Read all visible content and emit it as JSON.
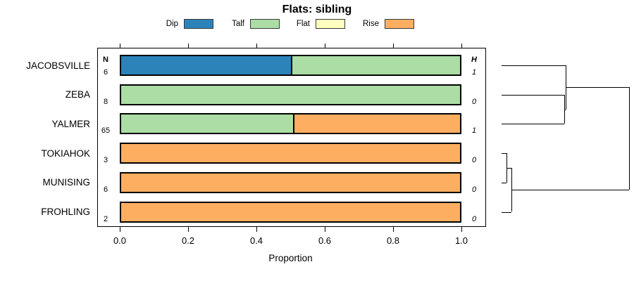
{
  "chart_data": {
    "type": "bar",
    "subtype": "horizontal_stacked_proportion",
    "title": "Flats: sibling",
    "xlabel": "Proportion",
    "xlim": [
      0,
      1
    ],
    "grid": false,
    "xticks": {
      "values": [
        0,
        0.2,
        0.4,
        0.6,
        0.8,
        1
      ],
      "labels": [
        "0.0",
        "0.2",
        "0.4",
        "0.6",
        "0.8",
        "1.0"
      ]
    },
    "legend": {
      "position": "top",
      "entries": [
        {
          "label": "Dip",
          "color": "#2B83BA"
        },
        {
          "label": "Talf",
          "color": "#ABDDA4"
        },
        {
          "label": "Flat",
          "color": "#FFFFBF"
        },
        {
          "label": "Rise",
          "color": "#FDAE61"
        }
      ]
    },
    "columns": {
      "n_header": "N",
      "h_header": "H"
    },
    "rows": [
      {
        "label": "JACOBSVILLE",
        "n": "6",
        "h": "1",
        "segments": [
          {
            "category": "Dip",
            "value": 0.5
          },
          {
            "category": "Talf",
            "value": 0.5
          }
        ]
      },
      {
        "label": "ZEBA",
        "n": "8",
        "h": "0",
        "segments": [
          {
            "category": "Talf",
            "value": 1.0
          }
        ]
      },
      {
        "label": "YALMER",
        "n": "65",
        "h": "1",
        "segments": [
          {
            "category": "Talf",
            "value": 0.508
          },
          {
            "category": "Rise",
            "value": 0.492
          }
        ]
      },
      {
        "label": "TOKIAHOK",
        "n": "3",
        "h": "0",
        "segments": [
          {
            "category": "Rise",
            "value": 1.0
          }
        ]
      },
      {
        "label": "MUNISING",
        "n": "6",
        "h": "0",
        "segments": [
          {
            "category": "Rise",
            "value": 1.0
          }
        ]
      },
      {
        "label": "FROHLING",
        "n": "2",
        "h": "0",
        "segments": [
          {
            "category": "Rise",
            "value": 1.0
          }
        ]
      }
    ],
    "dendrogram": {
      "orientation": "right",
      "newick": "((JACOBSVILLE,(ZEBA,YALMER)),((TOKIAHOK,MUNISING),FROHLING));",
      "tree": {
        "height": 1.0,
        "children": [
          {
            "height": 0.503,
            "children": [
              {
                "leaf": "JACOBSVILLE"
              },
              {
                "height": 0.492,
                "children": [
                  {
                    "leaf": "ZEBA"
                  },
                  {
                    "leaf": "YALMER"
                  }
                ]
              }
            ]
          },
          {
            "height": 0.077,
            "children": [
              {
                "height": 0.039,
                "children": [
                  {
                    "leaf": "TOKIAHOK"
                  },
                  {
                    "leaf": "MUNISING"
                  }
                ]
              },
              {
                "leaf": "FROHLING"
              }
            ]
          }
        ]
      }
    }
  }
}
